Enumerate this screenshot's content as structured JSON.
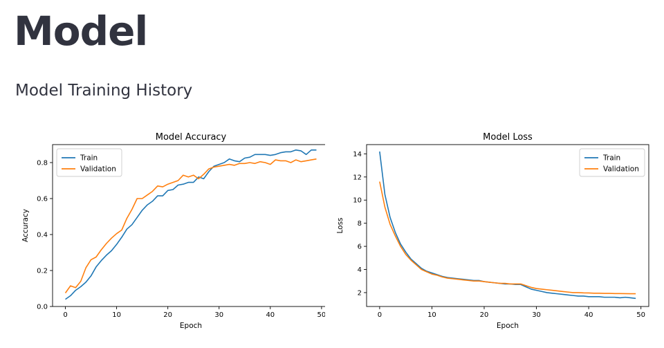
{
  "page": {
    "title": "Model",
    "subtitle": "Model Training History"
  },
  "chart_data": [
    {
      "type": "line",
      "title": "Model Accuracy",
      "xlabel": "Epoch",
      "ylabel": "Accuracy",
      "xlim": [
        -2.5,
        51.5
      ],
      "ylim": [
        0.0,
        0.9
      ],
      "xticks": [
        "0",
        "10",
        "20",
        "30",
        "40",
        "50"
      ],
      "yticks": [
        "0.0",
        "0.2",
        "0.4",
        "0.6",
        "0.8"
      ],
      "legend": "upper-left",
      "x": [
        0,
        1,
        2,
        3,
        4,
        5,
        6,
        7,
        8,
        9,
        10,
        11,
        12,
        13,
        14,
        15,
        16,
        17,
        18,
        19,
        20,
        21,
        22,
        23,
        24,
        25,
        26,
        27,
        28,
        29,
        30,
        31,
        32,
        33,
        34,
        35,
        36,
        37,
        38,
        39,
        40,
        41,
        42,
        43,
        44,
        45,
        46,
        47,
        48,
        49
      ],
      "series": [
        {
          "name": "Train",
          "color": "#1f77b4",
          "values": [
            0.04,
            0.06,
            0.09,
            0.11,
            0.135,
            0.17,
            0.22,
            0.255,
            0.285,
            0.31,
            0.345,
            0.385,
            0.43,
            0.455,
            0.495,
            0.535,
            0.565,
            0.585,
            0.615,
            0.615,
            0.645,
            0.65,
            0.675,
            0.68,
            0.69,
            0.69,
            0.72,
            0.71,
            0.75,
            0.78,
            0.79,
            0.8,
            0.82,
            0.81,
            0.805,
            0.825,
            0.83,
            0.845,
            0.845,
            0.845,
            0.84,
            0.845,
            0.855,
            0.86,
            0.86,
            0.87,
            0.865,
            0.845,
            0.87,
            0.87
          ]
        },
        {
          "name": "Validation",
          "color": "#ff7f0e",
          "values": [
            0.075,
            0.115,
            0.105,
            0.14,
            0.215,
            0.26,
            0.275,
            0.315,
            0.35,
            0.38,
            0.405,
            0.425,
            0.49,
            0.54,
            0.6,
            0.6,
            0.62,
            0.64,
            0.67,
            0.665,
            0.68,
            0.69,
            0.7,
            0.73,
            0.72,
            0.73,
            0.71,
            0.735,
            0.765,
            0.775,
            0.78,
            0.785,
            0.79,
            0.785,
            0.795,
            0.795,
            0.8,
            0.795,
            0.805,
            0.8,
            0.79,
            0.815,
            0.81,
            0.81,
            0.8,
            0.815,
            0.805,
            0.81,
            0.815,
            0.82
          ]
        }
      ]
    },
    {
      "type": "line",
      "title": "Model Loss",
      "xlabel": "Epoch",
      "ylabel": "Loss",
      "xlim": [
        -2.5,
        51.5
      ],
      "ylim": [
        0.8,
        14.8
      ],
      "xticks": [
        "0",
        "10",
        "20",
        "30",
        "40",
        "50"
      ],
      "yticks": [
        "2",
        "4",
        "6",
        "8",
        "10",
        "12",
        "14"
      ],
      "legend": "upper-right",
      "x": [
        0,
        1,
        2,
        3,
        4,
        5,
        6,
        7,
        8,
        9,
        10,
        11,
        12,
        13,
        14,
        15,
        16,
        17,
        18,
        19,
        20,
        21,
        22,
        23,
        24,
        25,
        26,
        27,
        28,
        29,
        30,
        31,
        32,
        33,
        34,
        35,
        36,
        37,
        38,
        39,
        40,
        41,
        42,
        43,
        44,
        45,
        46,
        47,
        48,
        49
      ],
      "series": [
        {
          "name": "Train",
          "color": "#1f77b4",
          "values": [
            14.2,
            10.5,
            8.5,
            7.2,
            6.2,
            5.5,
            4.9,
            4.5,
            4.1,
            3.85,
            3.7,
            3.55,
            3.4,
            3.3,
            3.25,
            3.2,
            3.15,
            3.1,
            3.05,
            3.05,
            2.95,
            2.9,
            2.85,
            2.8,
            2.75,
            2.75,
            2.7,
            2.7,
            2.5,
            2.3,
            2.2,
            2.1,
            2.0,
            1.95,
            1.9,
            1.85,
            1.8,
            1.75,
            1.7,
            1.7,
            1.65,
            1.65,
            1.65,
            1.6,
            1.6,
            1.6,
            1.55,
            1.6,
            1.55,
            1.5
          ]
        },
        {
          "name": "Validation",
          "color": "#ff7f0e",
          "values": [
            11.6,
            9.4,
            7.9,
            6.9,
            6.0,
            5.3,
            4.8,
            4.4,
            4.0,
            3.8,
            3.6,
            3.5,
            3.35,
            3.25,
            3.2,
            3.15,
            3.1,
            3.05,
            3.0,
            3.0,
            2.95,
            2.9,
            2.85,
            2.8,
            2.8,
            2.75,
            2.75,
            2.75,
            2.6,
            2.45,
            2.35,
            2.3,
            2.25,
            2.2,
            2.15,
            2.1,
            2.05,
            2.0,
            2.0,
            1.98,
            1.97,
            1.95,
            1.95,
            1.93,
            1.93,
            1.92,
            1.92,
            1.91,
            1.9,
            1.9
          ]
        }
      ]
    }
  ]
}
